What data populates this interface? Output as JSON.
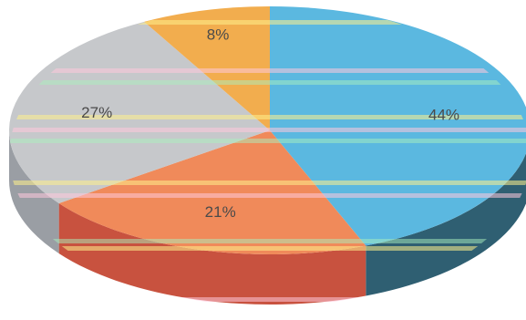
{
  "chart_data": {
    "type": "pie",
    "style": "3d-tilted",
    "legend": "none",
    "slices": [
      {
        "label": "44%",
        "value": 44,
        "color": "#5bb8e0",
        "side_color": "#2f5f72"
      },
      {
        "label": "21%",
        "value": 21,
        "color": "#f08a5a",
        "side_color": "#c8523f"
      },
      {
        "label": "27%",
        "value": 27,
        "color": "#c6c8cb",
        "side_color": "#9a9ea4"
      },
      {
        "label": "8%",
        "value": 8,
        "color": "#f2ad4e",
        "side_color": "#c07f2a"
      }
    ]
  }
}
